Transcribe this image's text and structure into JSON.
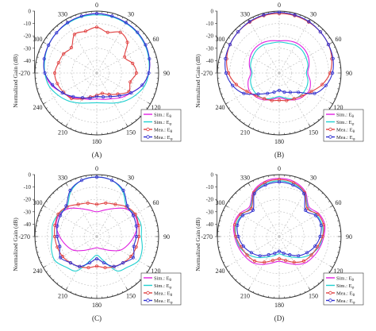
{
  "chart_data": [
    {
      "type": "polar-line",
      "panel_label": "(A)",
      "ylabel": "Normalized Gain (dB)",
      "r_ticks": [
        -10,
        -20,
        -30,
        -40,
        -50
      ],
      "r_range": [
        -50,
        0
      ],
      "angle_ticks": [
        "0",
        "30",
        "60",
        "90",
        "120",
        "150",
        "180",
        "210",
        "240",
        "-270",
        "300",
        "330"
      ],
      "legend_position": "bottom-right",
      "series": [
        {
          "name": "Sim.: E_θ",
          "sub": "θ",
          "color": "#e020e0",
          "marker": "none",
          "angles": [
            0,
            15,
            30,
            45,
            60,
            75,
            90,
            105,
            120,
            135,
            150,
            165,
            180,
            195,
            210,
            225,
            240,
            255,
            270,
            285,
            300,
            315,
            330,
            345
          ],
          "r_db": [
            -2,
            -2.5,
            -3,
            -4,
            -5,
            -6,
            -8,
            -12,
            -18,
            -22,
            -26,
            -28,
            -29,
            -28,
            -26,
            -22,
            -18,
            -12,
            -8,
            -6,
            -5,
            -4,
            -3,
            -2.5
          ]
        },
        {
          "name": "Sim.: E_φ",
          "sub": "φ",
          "color": "#20d0d0",
          "marker": "none",
          "angles": [
            0,
            15,
            30,
            45,
            60,
            75,
            90,
            105,
            120,
            135,
            150,
            165,
            180,
            195,
            210,
            225,
            240,
            255,
            270,
            285,
            300,
            315,
            330,
            345
          ],
          "r_db": [
            -3,
            -3,
            -3.5,
            -4,
            -5,
            -6.5,
            -8,
            -10,
            -14,
            -18,
            -22,
            -25,
            -26,
            -25,
            -22,
            -18,
            -14,
            -10,
            -8,
            -6.5,
            -5,
            -4,
            -3.5,
            -3
          ]
        },
        {
          "name": "Mea.: E_θ",
          "sub": "θ",
          "color": "#e04040",
          "marker": "circle",
          "angles": [
            0,
            15,
            30,
            45,
            60,
            75,
            90,
            105,
            120,
            135,
            150,
            165,
            180,
            195,
            210,
            225,
            240,
            255,
            270,
            285,
            300,
            315,
            330,
            345
          ],
          "r_db": [
            -13,
            -16,
            -12,
            -15,
            -24,
            -20,
            -18,
            -22,
            -20,
            -26,
            -30,
            -33,
            -32,
            -30,
            -26,
            -21,
            -19,
            -17,
            -16,
            -18,
            -19,
            -21,
            -14,
            -15
          ]
        },
        {
          "name": "Mea.: E_φ",
          "sub": "φ",
          "color": "#3030d0",
          "marker": "circle",
          "angles": [
            0,
            15,
            30,
            45,
            60,
            75,
            90,
            105,
            120,
            135,
            150,
            165,
            180,
            195,
            210,
            225,
            240,
            255,
            270,
            285,
            300,
            315,
            330,
            345
          ],
          "r_db": [
            -2,
            -2.5,
            -3,
            -3.5,
            -4.5,
            -6,
            -8,
            -12,
            -18,
            -24,
            -28,
            -30,
            -31,
            -29,
            -27,
            -23,
            -18,
            -13,
            -8,
            -6,
            -5,
            -4,
            -3,
            -2.5
          ]
        }
      ]
    },
    {
      "type": "polar-line",
      "panel_label": "(B)",
      "ylabel": "Normalized Gain (dB)",
      "r_ticks": [
        -10,
        -20,
        -30,
        -40,
        -50
      ],
      "r_range": [
        -50,
        0
      ],
      "angle_ticks": [
        "0",
        "30",
        "60",
        "90",
        "120",
        "150",
        "180",
        "210",
        "240",
        "-270",
        "300",
        "330"
      ],
      "legend_position": "bottom-right",
      "series": [
        {
          "name": "Sim.: E_θ",
          "sub": "θ",
          "color": "#e020e0",
          "marker": "none",
          "angles": [
            0,
            15,
            30,
            45,
            60,
            75,
            90,
            105,
            120,
            135,
            150,
            165,
            180,
            195,
            210,
            225,
            240,
            255,
            270,
            285,
            300,
            315,
            330,
            345
          ],
          "r_db": [
            -24,
            -23,
            -22,
            -22,
            -23,
            -25,
            -27,
            -24,
            -22,
            -23,
            -25,
            -28,
            -30,
            -28,
            -25,
            -23,
            -22,
            -24,
            -27,
            -25,
            -23,
            -22,
            -22,
            -23
          ]
        },
        {
          "name": "Sim.: E_φ",
          "sub": "φ",
          "color": "#20d0d0",
          "marker": "none",
          "angles": [
            0,
            15,
            30,
            45,
            60,
            75,
            90,
            105,
            120,
            135,
            150,
            165,
            180,
            195,
            210,
            225,
            240,
            255,
            270,
            285,
            300,
            315,
            330,
            345
          ],
          "r_db": [
            -25,
            -25,
            -24,
            -24,
            -25,
            -26,
            -28,
            -26,
            -25,
            -25,
            -26,
            -29,
            -31,
            -29,
            -26,
            -25,
            -25,
            -26,
            -28,
            -26,
            -25,
            -24,
            -24,
            -25
          ]
        },
        {
          "name": "Mea.: E_θ",
          "sub": "θ",
          "color": "#e04040",
          "marker": "circle",
          "angles": [
            0,
            15,
            30,
            45,
            60,
            75,
            90,
            105,
            120,
            135,
            150,
            165,
            180,
            195,
            210,
            225,
            240,
            255,
            270,
            285,
            300,
            315,
            330,
            345
          ],
          "r_db": [
            -2,
            -2,
            -2.5,
            -3,
            -4,
            -6,
            -9,
            -14,
            -20,
            -24,
            -26,
            -27,
            -28,
            -27,
            -26,
            -24,
            -20,
            -14,
            -9,
            -6,
            -4,
            -3,
            -2.5,
            -2
          ]
        },
        {
          "name": "Mea.: E_φ",
          "sub": "φ",
          "color": "#3030d0",
          "marker": "circle",
          "angles": [
            0,
            15,
            30,
            45,
            60,
            75,
            90,
            105,
            120,
            135,
            150,
            165,
            180,
            195,
            210,
            225,
            240,
            255,
            270,
            285,
            300,
            315,
            330,
            345
          ],
          "r_db": [
            -1,
            -1.5,
            -2,
            -3,
            -4,
            -5,
            -7,
            -11,
            -17,
            -28,
            -32,
            -34,
            -36,
            -34,
            -31,
            -26,
            -17,
            -11,
            -7,
            -5,
            -4,
            -3,
            -2,
            -1.5
          ]
        }
      ]
    },
    {
      "type": "polar-line",
      "panel_label": "(C)",
      "ylabel": "Normalized Gain (dB)",
      "r_ticks": [
        -10,
        -20,
        -30,
        -40,
        -50
      ],
      "r_range": [
        -50,
        0
      ],
      "angle_ticks": [
        "0",
        "30",
        "60",
        "90",
        "120",
        "150",
        "180",
        "210",
        "240",
        "-270",
        "300",
        "330"
      ],
      "legend_position": "bottom-right",
      "series": [
        {
          "name": "Sim.: E_θ",
          "sub": "θ",
          "color": "#e020e0",
          "marker": "none",
          "angles": [
            0,
            15,
            30,
            45,
            60,
            75,
            90,
            105,
            120,
            135,
            150,
            165,
            180,
            195,
            210,
            225,
            240,
            255,
            270,
            285,
            300,
            315,
            330,
            345
          ],
          "r_db": [
            -30,
            -28,
            -24,
            -18,
            -15,
            -16,
            -20,
            -24,
            -28,
            -34,
            -38,
            -40,
            -41,
            -40,
            -38,
            -34,
            -28,
            -24,
            -20,
            -16,
            -15,
            -18,
            -24,
            -28
          ]
        },
        {
          "name": "Sim.: E_φ",
          "sub": "φ",
          "color": "#20d0d0",
          "marker": "none",
          "angles": [
            0,
            15,
            30,
            45,
            60,
            75,
            90,
            105,
            120,
            135,
            150,
            165,
            180,
            195,
            210,
            225,
            240,
            255,
            270,
            285,
            300,
            315,
            330,
            345
          ],
          "r_db": [
            -2,
            -3,
            -8,
            -16,
            -14,
            -13,
            -14,
            -12,
            -11,
            -15,
            -18,
            -30,
            -35,
            -30,
            -18,
            -15,
            -11,
            -12,
            -14,
            -13,
            -14,
            -16,
            -8,
            -3
          ]
        },
        {
          "name": "Mea.: E_θ",
          "sub": "θ",
          "color": "#e04040",
          "marker": "circle",
          "angles": [
            0,
            15,
            30,
            45,
            60,
            75,
            90,
            105,
            120,
            135,
            150,
            165,
            180,
            195,
            210,
            225,
            240,
            255,
            270,
            285,
            300,
            315,
            330,
            345
          ],
          "r_db": [
            -24,
            -22,
            -20,
            -16,
            -14,
            -15,
            -16,
            -17,
            -18,
            -20,
            -22,
            -24,
            -26,
            -24,
            -22,
            -20,
            -18,
            -17,
            -16,
            -15,
            -14,
            -16,
            -20,
            -22
          ]
        },
        {
          "name": "Mea.: E_φ",
          "sub": "φ",
          "color": "#3030d0",
          "marker": "circle",
          "angles": [
            0,
            15,
            30,
            45,
            60,
            75,
            90,
            105,
            120,
            135,
            150,
            165,
            180,
            195,
            210,
            225,
            240,
            255,
            270,
            285,
            300,
            315,
            330,
            345
          ],
          "r_db": [
            -2,
            -3,
            -7,
            -15,
            -16,
            -17,
            -18,
            -19,
            -16,
            -20,
            -22,
            -28,
            -32,
            -28,
            -22,
            -20,
            -16,
            -19,
            -18,
            -17,
            -16,
            -15,
            -7,
            -3
          ]
        }
      ]
    },
    {
      "type": "polar-line",
      "panel_label": "(D)",
      "ylabel": "Normalized Gain (dB)",
      "r_ticks": [
        -10,
        -20,
        -30,
        -40,
        -50
      ],
      "r_range": [
        -50,
        0
      ],
      "angle_ticks": [
        "0",
        "30",
        "60",
        "90",
        "120",
        "150",
        "180",
        "210",
        "240",
        "-270",
        "300",
        "330"
      ],
      "legend_position": "bottom-right",
      "series": [
        {
          "name": "Sim.: E_θ",
          "sub": "θ",
          "color": "#e020e0",
          "marker": "none",
          "angles": [
            0,
            15,
            30,
            45,
            60,
            75,
            90,
            105,
            120,
            135,
            150,
            165,
            180,
            195,
            210,
            225,
            240,
            255,
            270,
            285,
            300,
            315,
            330,
            345
          ],
          "r_db": [
            -3,
            -4,
            -8,
            -16,
            -13,
            -12,
            -14,
            -16,
            -18,
            -20,
            -24,
            -28,
            -30,
            -28,
            -24,
            -20,
            -18,
            -16,
            -14,
            -12,
            -13,
            -16,
            -8,
            -4
          ]
        },
        {
          "name": "Sim.: E_φ",
          "sub": "φ",
          "color": "#20d0d0",
          "marker": "none",
          "angles": [
            0,
            15,
            30,
            45,
            60,
            75,
            90,
            105,
            120,
            135,
            150,
            165,
            180,
            195,
            210,
            225,
            240,
            255,
            270,
            285,
            300,
            315,
            330,
            345
          ],
          "r_db": [
            -5,
            -6,
            -9,
            -17,
            -15,
            -14,
            -15,
            -17,
            -21,
            -26,
            -31,
            -34,
            -36,
            -34,
            -31,
            -26,
            -21,
            -17,
            -15,
            -14,
            -15,
            -17,
            -9,
            -6
          ]
        },
        {
          "name": "Mea.: E_θ",
          "sub": "θ",
          "color": "#e04040",
          "marker": "circle",
          "angles": [
            0,
            15,
            30,
            45,
            60,
            75,
            90,
            105,
            120,
            135,
            150,
            165,
            180,
            195,
            210,
            225,
            240,
            255,
            270,
            285,
            300,
            315,
            330,
            345
          ],
          "r_db": [
            -4,
            -5,
            -9,
            -18,
            -14,
            -13,
            -15,
            -18,
            -20,
            -22,
            -26,
            -30,
            -32,
            -30,
            -26,
            -22,
            -20,
            -18,
            -15,
            -13,
            -14,
            -18,
            -9,
            -5
          ]
        },
        {
          "name": "Mea.: E_φ",
          "sub": "φ",
          "color": "#3030d0",
          "marker": "circle",
          "angles": [
            0,
            15,
            30,
            45,
            60,
            75,
            90,
            105,
            120,
            135,
            150,
            165,
            180,
            195,
            210,
            225,
            240,
            255,
            270,
            285,
            300,
            315,
            330,
            345
          ],
          "r_db": [
            -6,
            -7,
            -10,
            -20,
            -16,
            -15,
            -17,
            -20,
            -24,
            -28,
            -33,
            -36,
            -38,
            -36,
            -33,
            -28,
            -24,
            -20,
            -17,
            -15,
            -16,
            -20,
            -10,
            -7
          ]
        }
      ]
    }
  ]
}
